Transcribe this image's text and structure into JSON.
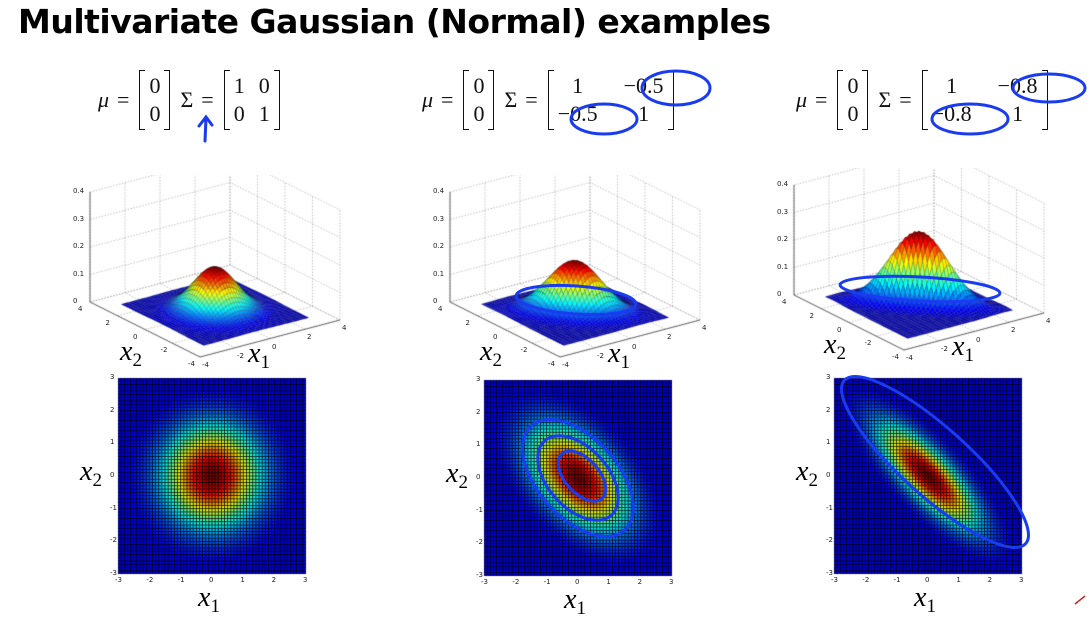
{
  "title": "Multivariate Gaussian (Normal) examples",
  "panels": [
    {
      "mu_symbol": "μ",
      "sigma_symbol": "Σ",
      "equals": "=",
      "mu": [
        "0",
        "0"
      ],
      "sigma": [
        [
          "1",
          "0"
        ],
        [
          "0",
          "1"
        ]
      ],
      "covariance": [
        [
          1,
          0
        ],
        [
          0,
          1
        ]
      ]
    },
    {
      "mu_symbol": "μ",
      "sigma_symbol": "Σ",
      "equals": "=",
      "mu": [
        "0",
        "0"
      ],
      "sigma": [
        [
          "1",
          "−0.5"
        ],
        [
          "−0.5",
          "1"
        ]
      ],
      "covariance": [
        [
          1,
          -0.5
        ],
        [
          -0.5,
          1
        ]
      ]
    },
    {
      "mu_symbol": "μ",
      "sigma_symbol": "Σ",
      "equals": "=",
      "mu": [
        "0",
        "0"
      ],
      "sigma": [
        [
          "1",
          "−0.8"
        ],
        [
          "−0.8",
          "1"
        ]
      ],
      "covariance": [
        [
          1,
          -0.8
        ],
        [
          -0.8,
          1
        ]
      ]
    }
  ],
  "surface_axes": {
    "z_ticks": [
      "0",
      "0.1",
      "0.2",
      "0.3",
      "0.4"
    ],
    "x1_ticks": [
      "-4",
      "-2",
      "0",
      "2",
      "4"
    ],
    "x2_ticks": [
      "-4",
      "-2",
      "0",
      "2",
      "4"
    ],
    "x1_label": "x",
    "x1_sub": "1",
    "x2_label": "x",
    "x2_sub": "2"
  },
  "heatmap_axes": {
    "ticks": [
      "-3",
      "-2",
      "-1",
      "0",
      "1",
      "2",
      "3"
    ],
    "x1_label": "x",
    "x1_sub": "1",
    "x2_label": "x",
    "x2_sub": "2"
  },
  "annotation_color": "#1a3cf0",
  "colormap": "jet"
}
